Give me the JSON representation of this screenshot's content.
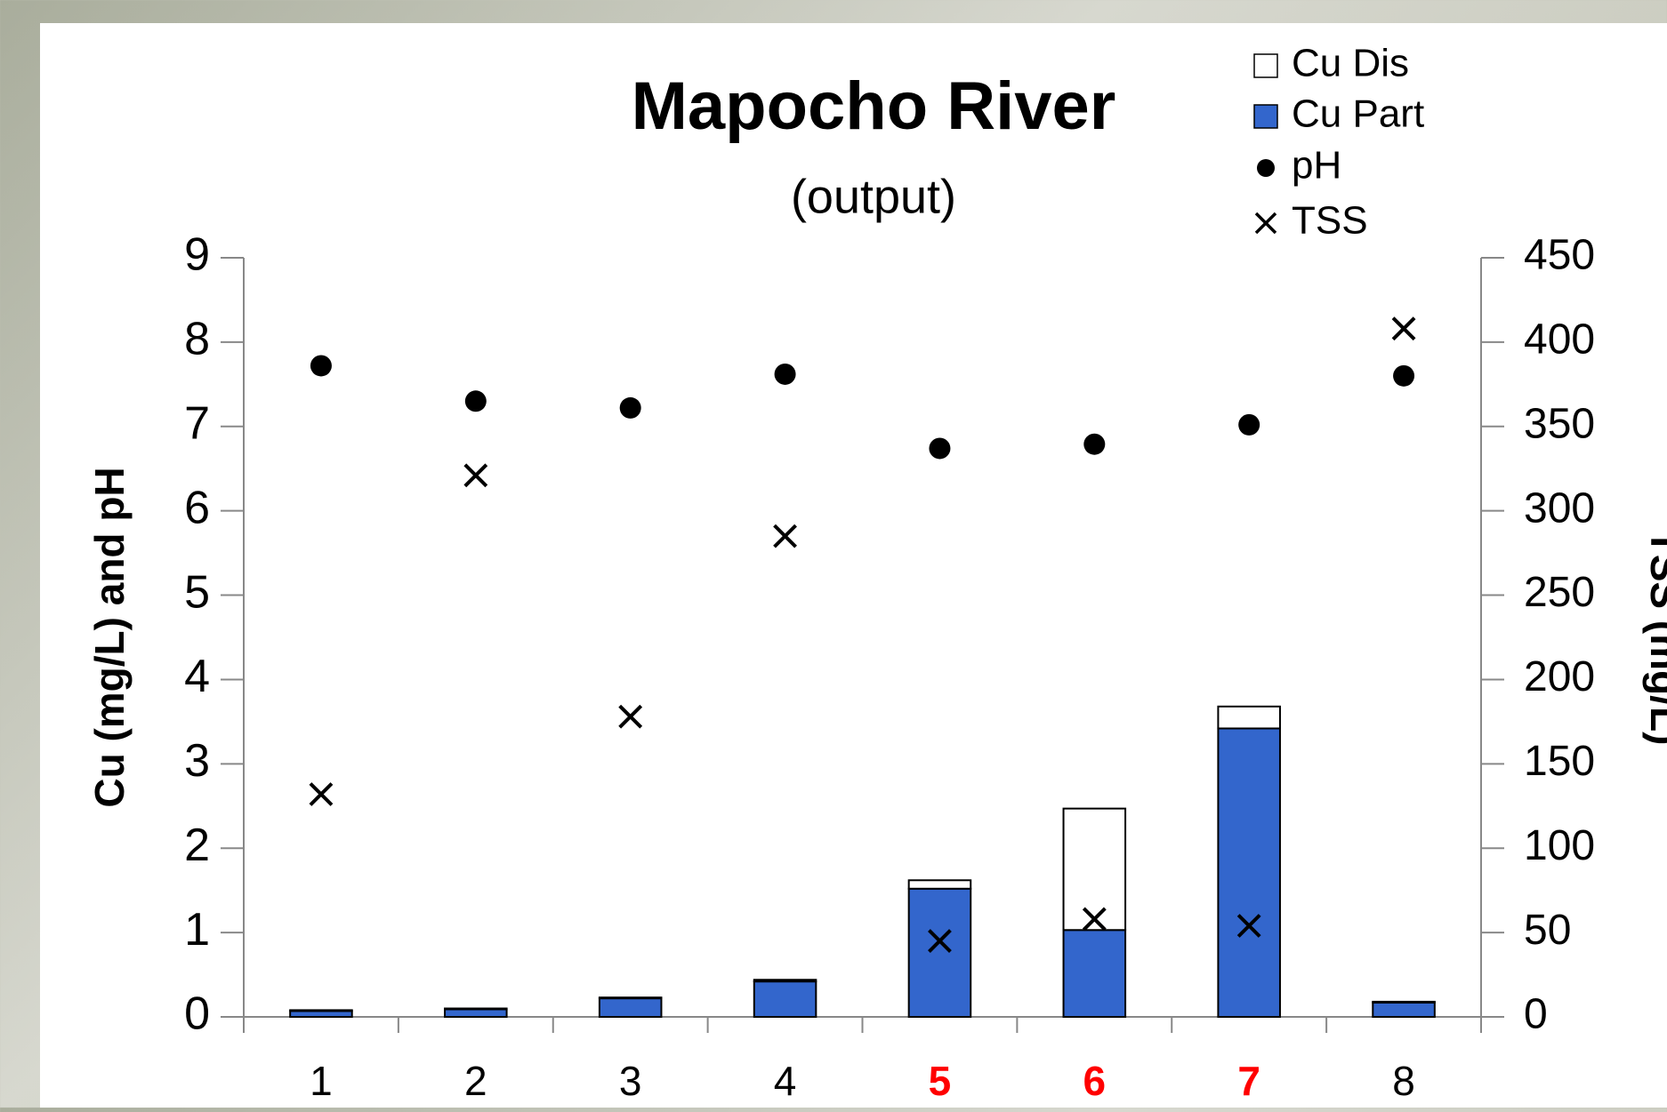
{
  "chart_data": {
    "type": "bar",
    "stacked": true,
    "title": "Mapocho River",
    "subtitle": "(output)",
    "y_label": "Cu (mg/L) and pH",
    "y2_label": "TSS (mg/L)",
    "categories": [
      "1",
      "2",
      "3",
      "4",
      "5",
      "6",
      "7",
      "8"
    ],
    "category_colors": [
      "#000000",
      "#000000",
      "#000000",
      "#000000",
      "#ff0000",
      "#ff0000",
      "#ff0000",
      "#000000"
    ],
    "series": [
      {
        "name": "Cu Dis",
        "type": "bar",
        "color": "#ffffff",
        "values": [
          0.01,
          0.01,
          0.01,
          0.02,
          0.1,
          1.44,
          0.26,
          0.01
        ]
      },
      {
        "name": "Cu Part",
        "type": "bar",
        "color": "#3366cc",
        "values": [
          0.07,
          0.09,
          0.22,
          0.42,
          1.52,
          1.03,
          3.42,
          0.17
        ]
      },
      {
        "name": "pH",
        "type": "scatter",
        "marker": "circle",
        "color": "#000000",
        "values": [
          7.72,
          7.3,
          7.22,
          7.62,
          6.74,
          6.79,
          7.02,
          7.6
        ]
      },
      {
        "name": "TSS",
        "type": "scatter",
        "marker": "x",
        "axis": "y2",
        "color": "#000000",
        "values": [
          132,
          321,
          178,
          285,
          45,
          58,
          54,
          408
        ]
      }
    ],
    "ylim": [
      0,
      9
    ],
    "yticks": [
      0,
      1,
      2,
      3,
      4,
      5,
      6,
      7,
      8,
      9
    ],
    "y2lim": [
      0,
      450
    ],
    "y2ticks": [
      0,
      50,
      100,
      150,
      200,
      250,
      300,
      350,
      400,
      450
    ],
    "legend": "top-right"
  }
}
